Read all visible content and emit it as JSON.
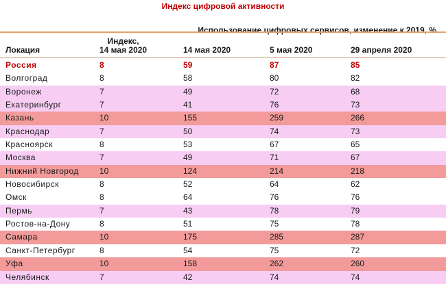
{
  "title": "Индекс цифровой активности",
  "subtitle": "Использование цифровых сервисов, изменение к 2019, %",
  "columns": [
    "Локация",
    "Индекс,\n14 мая 2020",
    "14 мая 2020",
    "5 мая 2020",
    "29 апреля 2020"
  ],
  "colors": {
    "title": "#c00000",
    "row_white": "#ffffff",
    "row_pink": "#f7cdf4",
    "row_red": "#f39a9a",
    "rule": "#e3a06b"
  },
  "chart_data": {
    "type": "table",
    "title": "Индекс цифровой активности",
    "subtitle": "Использование цифровых сервисов, изменение к 2019, %",
    "columns": [
      "Локация",
      "Индекс,\n14 мая 2020",
      "14 мая 2020",
      "5 мая 2020",
      "29 апреля 2020"
    ],
    "rows": [
      {
        "location": "Россия",
        "index": 8,
        "may14": 59,
        "may5": 87,
        "apr29": 85,
        "tone": "white",
        "highlight": true
      },
      {
        "location": "Волгоград",
        "index": 8,
        "may14": 58,
        "may5": 80,
        "apr29": 82,
        "tone": "white"
      },
      {
        "location": "Воронеж",
        "index": 7,
        "may14": 49,
        "may5": 72,
        "apr29": 68,
        "tone": "pink"
      },
      {
        "location": "Екатеринбург",
        "index": 7,
        "may14": 41,
        "may5": 76,
        "apr29": 73,
        "tone": "pink"
      },
      {
        "location": "Казань",
        "index": 10,
        "may14": 155,
        "may5": 259,
        "apr29": 266,
        "tone": "red"
      },
      {
        "location": "Краснодар",
        "index": 7,
        "may14": 50,
        "may5": 74,
        "apr29": 73,
        "tone": "pink"
      },
      {
        "location": "Красноярск",
        "index": 8,
        "may14": 53,
        "may5": 67,
        "apr29": 65,
        "tone": "white"
      },
      {
        "location": "Москва",
        "index": 7,
        "may14": 49,
        "may5": 71,
        "apr29": 67,
        "tone": "pink"
      },
      {
        "location": "Нижний Новгород",
        "index": 10,
        "may14": 124,
        "may5": 214,
        "apr29": 218,
        "tone": "red"
      },
      {
        "location": "Новосибирск",
        "index": 8,
        "may14": 52,
        "may5": 64,
        "apr29": 62,
        "tone": "white"
      },
      {
        "location": "Омск",
        "index": 8,
        "may14": 64,
        "may5": 76,
        "apr29": 76,
        "tone": "white"
      },
      {
        "location": "Пермь",
        "index": 7,
        "may14": 43,
        "may5": 78,
        "apr29": 79,
        "tone": "pink"
      },
      {
        "location": "Ростов-на-Дону",
        "index": 8,
        "may14": 51,
        "may5": 75,
        "apr29": 78,
        "tone": "white"
      },
      {
        "location": "Самара",
        "index": 10,
        "may14": 175,
        "may5": 285,
        "apr29": 287,
        "tone": "red"
      },
      {
        "location": "Санкт-Петербург",
        "index": 8,
        "may14": 54,
        "may5": 75,
        "apr29": 72,
        "tone": "white"
      },
      {
        "location": "Уфа",
        "index": 10,
        "may14": 158,
        "may5": 262,
        "apr29": 260,
        "tone": "red"
      },
      {
        "location": "Челябинск",
        "index": 7,
        "may14": 42,
        "may5": 74,
        "apr29": 74,
        "tone": "pink"
      }
    ]
  }
}
